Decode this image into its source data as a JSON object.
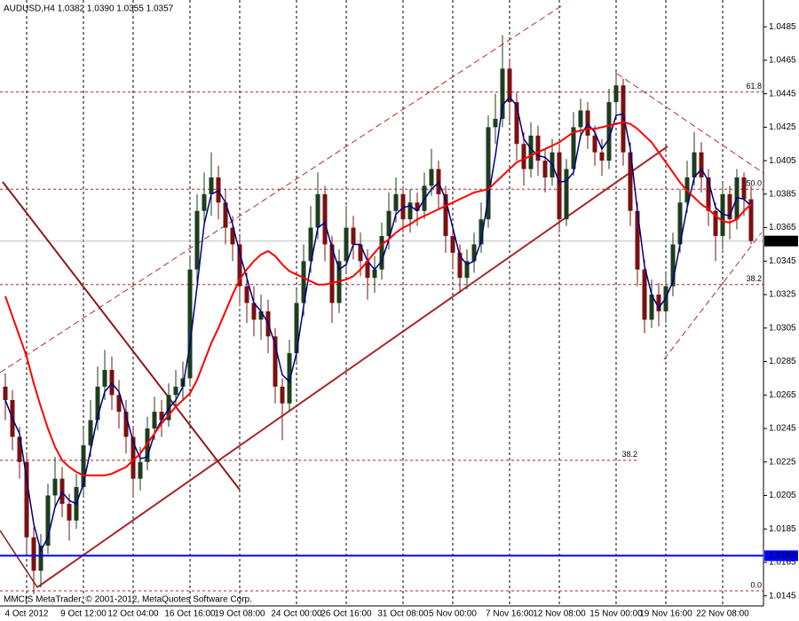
{
  "chart_data": {
    "type": "candlestick",
    "title": "AUDUSD,H4  1.0382 1.0390 1.0355 1.0357",
    "footer": "MMCIS MetaTrader, © 2001-2012, MetaQuotes Software Corp.",
    "categories": [
      null,
      null,
      null,
      "4 Oct 2012",
      null,
      null,
      null,
      null,
      null,
      null,
      null,
      "9 Oct 12:00",
      null,
      null,
      null,
      null,
      null,
      null,
      "12 Oct 04:00",
      null,
      null,
      null,
      null,
      null,
      null,
      null,
      "16 Oct 16:00",
      null,
      null,
      null,
      null,
      null,
      null,
      "19 Oct 08:00",
      null,
      null,
      null,
      null,
      null,
      null,
      null,
      "24 Oct 00:00",
      null,
      null,
      null,
      null,
      null,
      null,
      "26 Oct 16:00",
      null,
      null,
      null,
      null,
      null,
      null,
      null,
      "31 Oct 08:00",
      null,
      null,
      null,
      null,
      null,
      null,
      "5 Nov 00:00",
      null,
      null,
      null,
      null,
      null,
      null,
      null,
      "7 Nov 16:00",
      null,
      null,
      null,
      null,
      null,
      null,
      "12 Nov 08:00",
      null,
      null,
      null,
      null,
      null,
      null,
      null,
      "15 Nov 00:00",
      null,
      null,
      null,
      null,
      null,
      null,
      "19 Nov 16:00",
      null,
      null,
      null,
      null,
      null,
      null,
      null,
      "22 Nov 08:00",
      null,
      null,
      null,
      null
    ],
    "open": [
      1.027,
      1.0262,
      1.024,
      1.0225,
      1.018,
      1.016,
      1.0175,
      1.0205,
      1.0215,
      1.02,
      1.019,
      1.021,
      1.0235,
      1.025,
      1.027,
      1.028,
      1.0265,
      1.0255,
      1.024,
      1.0215,
      1.0225,
      1.0245,
      1.0255,
      1.025,
      1.0265,
      1.027,
      1.0275,
      1.034,
      1.0375,
      1.0385,
      1.0395,
      1.038,
      1.0365,
      1.0355,
      1.033,
      1.032,
      1.031,
      1.0315,
      1.03,
      1.027,
      1.026,
      1.029,
      1.032,
      1.0345,
      1.0365,
      1.0385,
      1.0355,
      1.032,
      1.0345,
      1.0365,
      1.0355,
      1.0345,
      1.0335,
      1.034,
      1.036,
      1.0375,
      1.0385,
      1.037,
      1.038,
      1.0375,
      1.039,
      1.04,
      1.0385,
      1.036,
      1.035,
      1.0335,
      1.0345,
      1.0355,
      1.037,
      1.0425,
      1.043,
      1.046,
      1.044,
      1.0415,
      1.04,
      1.042,
      1.0405,
      1.0395,
      1.041,
      1.037,
      1.04,
      1.0425,
      1.0435,
      1.042,
      1.041,
      1.0405,
      1.044,
      1.045,
      1.041,
      1.0375,
      1.034,
      1.031,
      1.0325,
      1.0315,
      1.033,
      1.0355,
      1.038,
      1.0395,
      1.041,
      1.0395,
      1.0375,
      1.036,
      1.0385,
      1.037,
      1.0395,
      1.0382
    ],
    "high": [
      1.0278,
      1.0268,
      1.0246,
      1.023,
      1.0186,
      1.0182,
      1.0212,
      1.0228,
      1.0222,
      1.0206,
      1.0218,
      1.0245,
      1.0262,
      1.0282,
      1.0292,
      1.0288,
      1.0274,
      1.0262,
      1.0246,
      1.0234,
      1.0252,
      1.0264,
      1.0262,
      1.0272,
      1.028,
      1.0285,
      1.0348,
      1.0385,
      1.0398,
      1.041,
      1.0402,
      1.0388,
      1.0372,
      1.036,
      1.0338,
      1.033,
      1.0325,
      1.0322,
      1.0305,
      1.0275,
      1.0298,
      1.0328,
      1.0355,
      1.0378,
      1.0398,
      1.039,
      1.036,
      1.0352,
      1.0378,
      1.0372,
      1.0362,
      1.0352,
      1.0348,
      1.0368,
      1.0386,
      1.0395,
      1.039,
      1.0388,
      1.0386,
      1.0398,
      1.0412,
      1.0405,
      1.039,
      1.0366,
      1.0355,
      1.0352,
      1.0362,
      1.038,
      1.0432,
      1.0445,
      1.048,
      1.0466,
      1.0446,
      1.0422,
      1.0428,
      1.0426,
      1.0412,
      1.0418,
      1.0415,
      1.0406,
      1.0434,
      1.0442,
      1.044,
      1.0426,
      1.0418,
      1.0448,
      1.0458,
      1.0454,
      1.0416,
      1.038,
      1.0346,
      1.0334,
      1.0332,
      1.0338,
      1.0362,
      1.0388,
      1.0405,
      1.0422,
      1.0416,
      1.04,
      1.038,
      1.0392,
      1.039,
      1.04,
      1.0398,
      1.039
    ],
    "low": [
      1.025,
      1.0232,
      1.0215,
      1.017,
      1.0146,
      1.015,
      1.017,
      1.0198,
      1.0192,
      1.0178,
      1.0185,
      1.0204,
      1.0228,
      1.0244,
      1.0262,
      1.0256,
      1.0245,
      1.023,
      1.0204,
      1.0208,
      1.022,
      1.0238,
      1.024,
      1.0246,
      1.0258,
      1.0262,
      1.027,
      1.0332,
      1.0366,
      1.0372,
      1.037,
      1.0355,
      1.0345,
      1.0318,
      1.0308,
      1.03,
      1.0298,
      1.029,
      1.026,
      1.0238,
      1.0255,
      1.0284,
      1.0312,
      1.0338,
      1.0358,
      1.0345,
      1.0308,
      1.0314,
      1.0338,
      1.0346,
      1.0336,
      1.0322,
      1.0326,
      1.0334,
      1.0352,
      1.0368,
      1.0362,
      1.0362,
      1.0366,
      1.037,
      1.0384,
      1.0376,
      1.035,
      1.034,
      1.0326,
      1.0328,
      1.0338,
      1.035,
      1.0365,
      1.0415,
      1.0425,
      1.0428,
      1.0405,
      1.039,
      1.0395,
      1.0396,
      1.0386,
      1.039,
      1.0362,
      1.0366,
      1.0396,
      1.0418,
      1.0412,
      1.0402,
      1.0396,
      1.04,
      1.0432,
      1.0402,
      1.0366,
      1.033,
      1.0302,
      1.0305,
      1.0306,
      1.0308,
      1.0324,
      1.035,
      1.0374,
      1.039,
      1.0386,
      1.0366,
      1.0345,
      1.0352,
      1.0358,
      1.0364,
      1.0372,
      1.0355
    ],
    "close": [
      1.0262,
      1.024,
      1.0225,
      1.018,
      1.016,
      1.0175,
      1.0205,
      1.0215,
      1.02,
      1.019,
      1.021,
      1.0235,
      1.025,
      1.027,
      1.028,
      1.0265,
      1.0255,
      1.024,
      1.0215,
      1.0225,
      1.0245,
      1.0255,
      1.025,
      1.0265,
      1.027,
      1.0275,
      1.034,
      1.0375,
      1.0385,
      1.0395,
      1.038,
      1.0365,
      1.0355,
      1.033,
      1.032,
      1.031,
      1.0315,
      1.03,
      1.027,
      1.026,
      1.029,
      1.032,
      1.0345,
      1.0365,
      1.0385,
      1.0355,
      1.032,
      1.0345,
      1.0365,
      1.0355,
      1.0345,
      1.0335,
      1.034,
      1.036,
      1.0375,
      1.0385,
      1.037,
      1.038,
      1.0375,
      1.039,
      1.04,
      1.0385,
      1.036,
      1.035,
      1.0335,
      1.0345,
      1.0355,
      1.037,
      1.0425,
      1.043,
      1.046,
      1.044,
      1.0415,
      1.04,
      1.042,
      1.0405,
      1.0395,
      1.041,
      1.037,
      1.04,
      1.0425,
      1.0435,
      1.042,
      1.041,
      1.0405,
      1.044,
      1.045,
      1.041,
      1.0375,
      1.034,
      1.031,
      1.0325,
      1.0315,
      1.033,
      1.0355,
      1.038,
      1.0395,
      1.041,
      1.0395,
      1.0375,
      1.036,
      1.0385,
      1.037,
      1.0395,
      1.0382,
      1.0357
    ],
    "up_color": "#1d3d1d",
    "down_color": "#7a1010",
    "moving_averages": [
      {
        "color": "#000080",
        "values": [
          1.0262,
          1.0251,
          1.0242,
          1.0215,
          1.0188,
          1.0172,
          1.018,
          1.0198,
          1.0207,
          1.0202,
          1.02,
          1.0212,
          1.0232,
          1.0252,
          1.0267,
          1.0272,
          1.0267,
          1.0253,
          1.0237,
          1.0227,
          1.0228,
          1.0242,
          1.025,
          1.0257,
          1.0262,
          1.027,
          1.0295,
          1.033,
          1.0367,
          1.0385,
          1.0387,
          1.038,
          1.0367,
          1.035,
          1.0335,
          1.032,
          1.0315,
          1.0308,
          1.0295,
          1.0277,
          1.0273,
          1.029,
          1.0318,
          1.0343,
          1.0365,
          1.0368,
          1.0353,
          1.034,
          1.0343,
          1.0355,
          1.0355,
          1.0345,
          1.034,
          1.0345,
          1.0358,
          1.0373,
          1.0377,
          1.0378,
          1.0375,
          1.0382,
          1.0388,
          1.0392,
          1.0382,
          1.0365,
          1.0348,
          1.0343,
          1.0345,
          1.0357,
          1.0383,
          1.0408,
          1.0438,
          1.0443,
          1.0438,
          1.0418,
          1.0412,
          1.0408,
          1.0407,
          1.0403,
          1.0392,
          1.0393,
          1.0398,
          1.042,
          1.0427,
          1.0422,
          1.0412,
          1.0418,
          1.0432,
          1.0433,
          1.0412,
          1.0375,
          1.0342,
          1.0325,
          1.0317,
          1.0323,
          1.0333,
          1.0355,
          1.0377,
          1.0395,
          1.04,
          1.0393,
          1.0377,
          1.0373,
          1.0372,
          1.0383,
          1.0382,
          1.0378
        ]
      },
      {
        "color": "#ff0000",
        "values": [
          1.0324,
          1.0312,
          1.03,
          1.0288,
          1.0272,
          1.0258,
          1.0245,
          1.0234,
          1.0226,
          1.0222,
          1.0219,
          1.0217,
          1.0217,
          1.0217,
          1.0217,
          1.0218,
          1.022,
          1.0222,
          1.0226,
          1.023,
          1.0236,
          1.0242,
          1.0248,
          1.0253,
          1.0258,
          1.0262,
          1.0266,
          1.0274,
          1.0285,
          1.0296,
          1.0305,
          1.0315,
          1.0325,
          1.0334,
          1.034,
          1.0345,
          1.0349,
          1.0351,
          1.0348,
          1.0343,
          1.0339,
          1.0337,
          1.0335,
          1.0333,
          1.0331,
          1.0331,
          1.0332,
          1.0333,
          1.0334,
          1.0336,
          1.034,
          1.0345,
          1.035,
          1.0355,
          1.0358,
          1.0362,
          1.0365,
          1.0367,
          1.037,
          1.0372,
          1.0374,
          1.0376,
          1.0378,
          1.038,
          1.0382,
          1.0384,
          1.0386,
          1.0387,
          1.0388,
          1.0392,
          1.0396,
          1.04,
          1.0404,
          1.0406,
          1.0408,
          1.041,
          1.0412,
          1.0414,
          1.0416,
          1.0419,
          1.0422,
          1.0423,
          1.0424,
          1.0424,
          1.0425,
          1.0426,
          1.0427,
          1.0428,
          1.0427,
          1.0424,
          1.042,
          1.0416,
          1.041,
          1.0404,
          1.0398,
          1.0392,
          1.0387,
          1.0383,
          1.0379,
          1.0376,
          1.0372,
          1.0369,
          1.0368,
          1.037,
          1.0375,
          1.0379
        ]
      }
    ],
    "fib_levels": [
      {
        "ratio": "61.8",
        "price": 1.0446
      },
      {
        "ratio": "50.0",
        "price": 1.0388
      },
      {
        "ratio": "38.2",
        "price": 1.0331
      },
      {
        "ratio": "38.2",
        "price": 1.0226
      },
      {
        "ratio": "0.0",
        "price": 1.0148
      }
    ],
    "fib_color": "#b22222",
    "horizontal_line": {
      "price": 1.0169,
      "color": "#0000ff"
    },
    "ylim": [
      1.0139,
      1.0501
    ],
    "yticks": [
      1.0145,
      1.0165,
      1.0185,
      1.0205,
      1.0225,
      1.0245,
      1.0265,
      1.0285,
      1.0305,
      1.0325,
      1.0345,
      1.0365,
      1.0385,
      1.0405,
      1.0425,
      1.0445,
      1.0465,
      1.0485
    ],
    "grid": true
  }
}
